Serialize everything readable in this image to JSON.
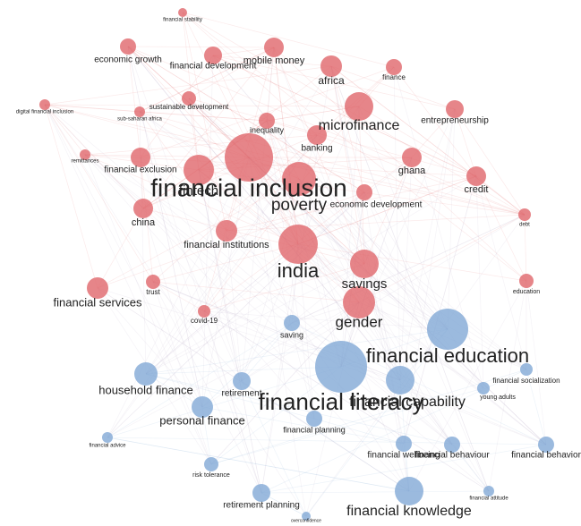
{
  "nodes": [
    {
      "label": "financial stability",
      "color": "#e0676c"
    },
    {
      "label": "economic growth",
      "color": "#e0676c"
    },
    {
      "label": "financial development",
      "color": "#e0676c"
    },
    {
      "label": "mobile money",
      "color": "#e0676c"
    },
    {
      "label": "africa",
      "color": "#e0676c"
    },
    {
      "label": "finance",
      "color": "#e0676c"
    },
    {
      "label": "digital financial inclusion",
      "color": "#e0676c"
    },
    {
      "label": "sustainable development",
      "color": "#e0676c"
    },
    {
      "label": "sub-saharan africa",
      "color": "#e0676c"
    },
    {
      "label": "microfinance",
      "color": "#e0676c"
    },
    {
      "label": "entrepreneurship",
      "color": "#e0676c"
    },
    {
      "label": "inequality",
      "color": "#e0676c"
    },
    {
      "label": "banking",
      "color": "#e0676c"
    },
    {
      "label": "remittances",
      "color": "#e0676c"
    },
    {
      "label": "financial exclusion",
      "color": "#e0676c"
    },
    {
      "label": "ghana",
      "color": "#e0676c"
    },
    {
      "label": "fintech",
      "color": "#e0676c"
    },
    {
      "label": "financial inclusion",
      "color": "#e0676c"
    },
    {
      "label": "poverty",
      "color": "#e0676c"
    },
    {
      "label": "economic development",
      "color": "#e0676c"
    },
    {
      "label": "credit",
      "color": "#e0676c"
    },
    {
      "label": "china",
      "color": "#e0676c"
    },
    {
      "label": "debt",
      "color": "#e0676c"
    },
    {
      "label": "financial institutions",
      "color": "#e0676c"
    },
    {
      "label": "india",
      "color": "#e0676c"
    },
    {
      "label": "savings",
      "color": "#e0676c"
    },
    {
      "label": "financial services",
      "color": "#e0676c"
    },
    {
      "label": "trust",
      "color": "#e0676c"
    },
    {
      "label": "education",
      "color": "#e0676c"
    },
    {
      "label": "gender",
      "color": "#e0676c"
    },
    {
      "label": "covid-19",
      "color": "#e0676c"
    },
    {
      "label": "saving",
      "color": "#82a9d6"
    },
    {
      "label": "financial education",
      "color": "#82a9d6"
    },
    {
      "label": "financial capability",
      "color": "#82a9d6"
    },
    {
      "label": "financial literacy",
      "color": "#82a9d6"
    },
    {
      "label": "financial socialization",
      "color": "#82a9d6"
    },
    {
      "label": "household finance",
      "color": "#82a9d6"
    },
    {
      "label": "retirement",
      "color": "#82a9d6"
    },
    {
      "label": "young adults",
      "color": "#82a9d6"
    },
    {
      "label": "personal finance",
      "color": "#82a9d6"
    },
    {
      "label": "financial planning",
      "color": "#82a9d6"
    },
    {
      "label": "financial advice",
      "color": "#82a9d6"
    },
    {
      "label": "financial wellbeing",
      "color": "#82a9d6"
    },
    {
      "label": "financial behaviour",
      "color": "#82a9d6"
    },
    {
      "label": "financial behavior",
      "color": "#82a9d6"
    },
    {
      "label": "risk tolerance",
      "color": "#82a9d6"
    },
    {
      "label": "retirement planning",
      "color": "#82a9d6"
    },
    {
      "label": "financial knowledge",
      "color": "#82a9d6"
    },
    {
      "label": "financial attitude",
      "color": "#82a9d6"
    },
    {
      "label": "overconfidence",
      "color": "#82a9d6"
    }
  ]
}
